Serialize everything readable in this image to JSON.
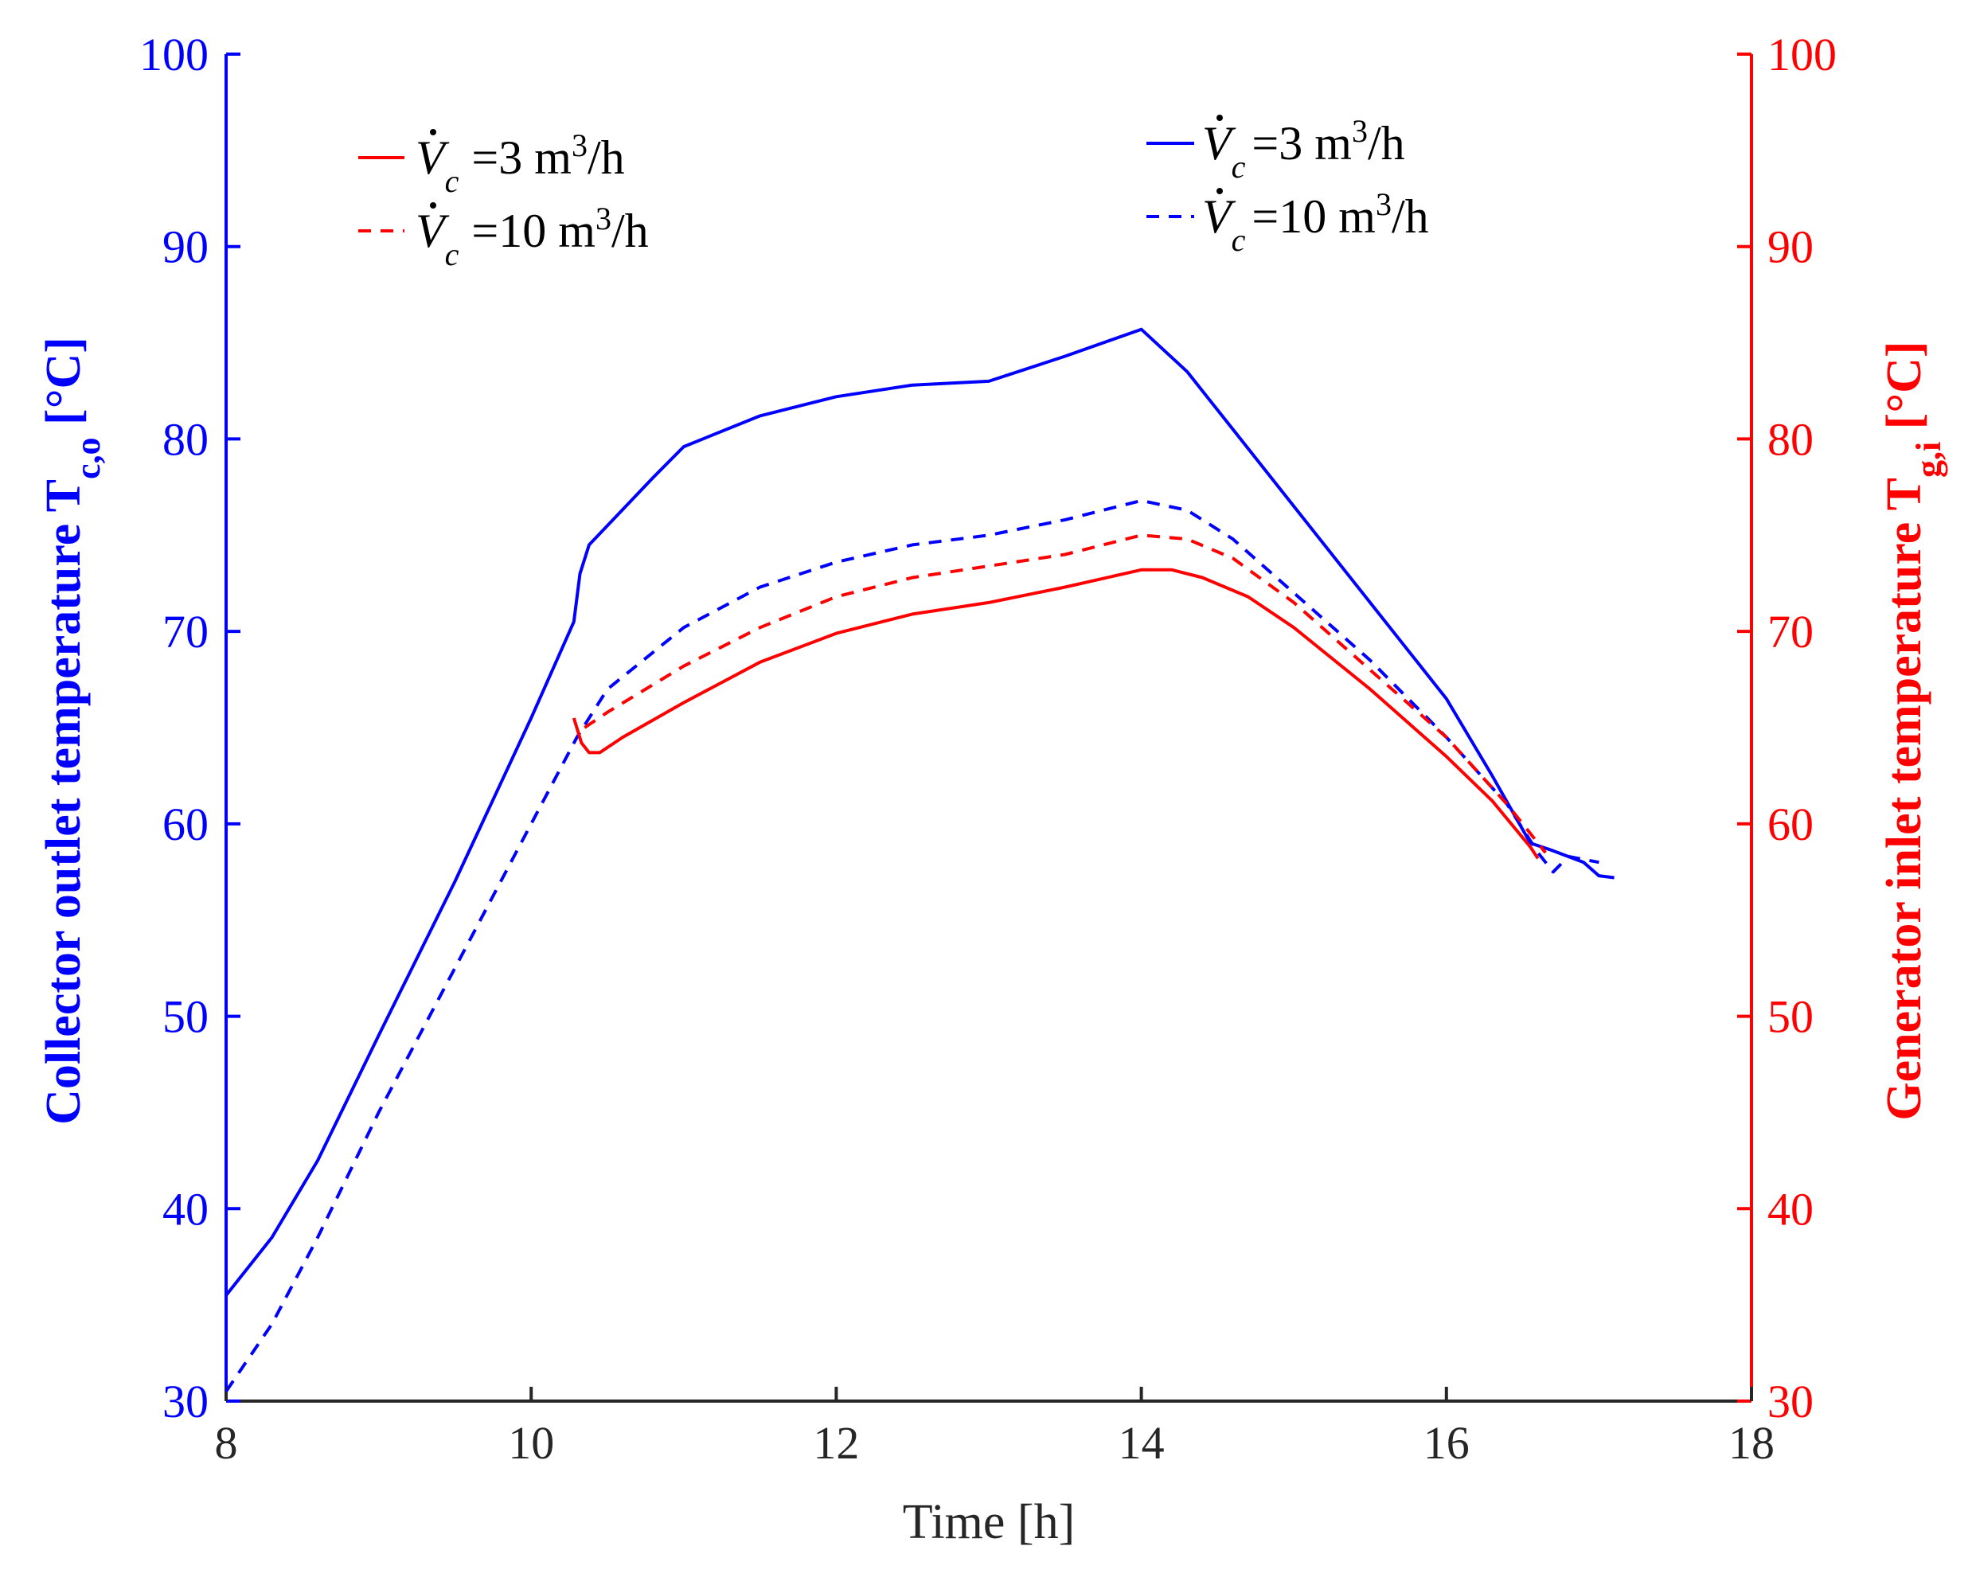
{
  "chart_data": {
    "type": "line",
    "xlabel": "Time [h]",
    "xlim": [
      8,
      18
    ],
    "xticks": [
      8,
      10,
      12,
      14,
      16,
      18
    ],
    "y_left": {
      "label": "Collector outlet temperature",
      "label_var": "T",
      "label_sub": "c,o",
      "label_unit": "[°C]",
      "color": "#0000ff",
      "lim": [
        30,
        100
      ],
      "ticks": [
        30,
        40,
        50,
        60,
        70,
        80,
        90,
        100
      ]
    },
    "y_right": {
      "label": "Generator inlet temperature",
      "label_var": "T",
      "label_sub": "g,i",
      "label_unit": "[°C]",
      "color": "#ff0000",
      "lim": [
        30,
        100
      ],
      "ticks": [
        30,
        40,
        50,
        60,
        70,
        80,
        90,
        100
      ]
    },
    "legends": {
      "red": [
        {
          "symbol": "V",
          "sub": "c",
          "eq": "=3 m",
          "sup": "3",
          "unit": "/h",
          "style": "solid",
          "color": "#ff0000"
        },
        {
          "symbol": "V",
          "sub": "c",
          "eq": "=10 m",
          "sup": "3",
          "unit": "/h",
          "style": "dashed",
          "color": "#ff0000"
        }
      ],
      "blue": [
        {
          "symbol": "V",
          "sub": "c",
          "eq": "=3 m",
          "sup": "3",
          "unit": "/h",
          "style": "solid",
          "color": "#0000ff"
        },
        {
          "symbol": "V",
          "sub": "c",
          "eq": "=10 m",
          "sup": "3",
          "unit": "/h",
          "style": "dashed",
          "color": "#0000ff"
        }
      ]
    },
    "series": [
      {
        "name": "Collector outlet, Vc=3 m3/h",
        "axis": "left",
        "color": "#0000ff",
        "style": "solid",
        "x": [
          8.0,
          8.3,
          8.6,
          9.0,
          9.5,
          10.0,
          10.28,
          10.32,
          10.38,
          10.5,
          10.8,
          11.0,
          11.5,
          12.0,
          12.5,
          13.0,
          13.5,
          14.0,
          14.3,
          14.6,
          15.0,
          15.5,
          16.0,
          16.3,
          16.55,
          16.7,
          16.9,
          17.0,
          17.1
        ],
        "y": [
          35.5,
          38.5,
          42.5,
          49.0,
          57.0,
          65.5,
          70.5,
          73.0,
          74.5,
          75.5,
          78.0,
          79.6,
          81.2,
          82.2,
          82.8,
          83.0,
          84.3,
          85.7,
          83.5,
          80.5,
          76.5,
          71.5,
          66.5,
          62.5,
          59.0,
          58.6,
          58.0,
          57.3,
          57.2
        ]
      },
      {
        "name": "Collector outlet, Vc=10 m3/h",
        "axis": "left",
        "color": "#0000ff",
        "style": "dashed",
        "x": [
          8.0,
          8.3,
          8.6,
          9.0,
          9.5,
          10.0,
          10.3,
          10.5,
          11.0,
          11.5,
          12.0,
          12.5,
          13.0,
          13.5,
          14.0,
          14.3,
          14.6,
          15.0,
          15.5,
          16.0,
          16.4,
          16.6,
          16.7,
          16.8,
          17.0
        ],
        "y": [
          30.5,
          34.0,
          38.5,
          45.0,
          52.5,
          60.0,
          64.5,
          67.0,
          70.2,
          72.3,
          73.6,
          74.5,
          75.0,
          75.8,
          76.8,
          76.3,
          74.8,
          72.0,
          68.5,
          64.5,
          61.0,
          58.5,
          57.5,
          58.3,
          58.0
        ]
      },
      {
        "name": "Generator inlet, Vc=3 m3/h",
        "axis": "right",
        "color": "#ff0000",
        "style": "solid",
        "x": [
          10.28,
          10.33,
          10.38,
          10.45,
          10.6,
          11.0,
          11.5,
          12.0,
          12.5,
          13.0,
          13.5,
          14.0,
          14.2,
          14.4,
          14.7,
          15.0,
          15.5,
          16.0,
          16.3,
          16.55,
          16.6
        ],
        "y": [
          65.5,
          64.2,
          63.7,
          63.7,
          64.5,
          66.3,
          68.4,
          69.9,
          70.9,
          71.5,
          72.3,
          73.2,
          73.2,
          72.8,
          71.8,
          70.2,
          67.0,
          63.5,
          61.2,
          58.8,
          58.2
        ]
      },
      {
        "name": "Generator inlet, Vc=10 m3/h",
        "axis": "right",
        "color": "#ff0000",
        "style": "dashed",
        "x": [
          10.35,
          10.5,
          11.0,
          11.5,
          12.0,
          12.5,
          13.0,
          13.5,
          14.0,
          14.3,
          14.6,
          15.0,
          15.5,
          16.0,
          16.4,
          16.6,
          16.65
        ],
        "y": [
          65.0,
          65.8,
          68.2,
          70.2,
          71.8,
          72.8,
          73.4,
          74.0,
          75.0,
          74.8,
          73.8,
          71.5,
          68.0,
          64.5,
          61.0,
          59.0,
          58.5
        ]
      }
    ]
  }
}
